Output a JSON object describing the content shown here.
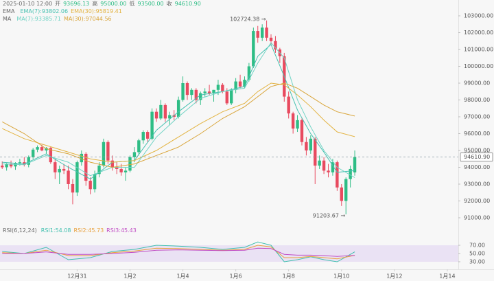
{
  "chart_data": [
    {
      "type": "candlestick",
      "header": {
        "time": "2025-01-10 12:00",
        "open_label": "开",
        "open": "93696.13",
        "high_label": "高",
        "high": "95000.00",
        "low_label": "低",
        "low": "93500.00",
        "close_label": "收",
        "close": "94610.90"
      },
      "colors": {
        "up": "#2ebd85",
        "down": "#e84a5f"
      },
      "categories": [
        null,
        null,
        null,
        null,
        null,
        null,
        null,
        null,
        null,
        null,
        null,
        null,
        null,
        null,
        null,
        null,
        null,
        null,
        null,
        null,
        null,
        null,
        null,
        null,
        null,
        null,
        null,
        null,
        null,
        null,
        null,
        null,
        null,
        null,
        null,
        null,
        null,
        null,
        null,
        null,
        null,
        null,
        null,
        null,
        null,
        null,
        null,
        null,
        null,
        null,
        null,
        null,
        null,
        null,
        null,
        null,
        null,
        null,
        null,
        null,
        null,
        null,
        null,
        null,
        null,
        null,
        null,
        null,
        null,
        null,
        null,
        null,
        null,
        null,
        null,
        null,
        null,
        null,
        null,
        null,
        null
      ],
      "open": [
        94100,
        94000,
        94200,
        94050,
        94250,
        94300,
        94150,
        94600,
        95050,
        95200,
        95000,
        95150,
        94300,
        93700,
        93900,
        93800,
        93000,
        92500,
        94300,
        94800,
        93200,
        92700,
        93600,
        94100,
        95500,
        94400,
        94000,
        93900,
        93700,
        93800,
        94600,
        94900,
        95600,
        96100,
        95700,
        97300,
        96900,
        97700,
        96900,
        97100,
        97000,
        98000,
        99000,
        98300,
        98600,
        98000,
        98400,
        98500,
        98400,
        98600,
        98900,
        98500,
        97800,
        98600,
        99100,
        98800,
        99200,
        100000,
        102100,
        101700,
        102300,
        101700,
        101500,
        101000,
        100600,
        98200,
        97200,
        96300,
        96800,
        95500,
        95000,
        95700,
        94100,
        94400,
        93800,
        93700,
        94300,
        92800,
        92000,
        93300,
        93696.13
      ],
      "high": [
        94350,
        94250,
        94400,
        94300,
        94500,
        94600,
        94700,
        95150,
        95300,
        95350,
        95200,
        95200,
        94500,
        94100,
        94200,
        94100,
        93300,
        94400,
        95000,
        94900,
        93400,
        93800,
        94300,
        95700,
        95600,
        94700,
        94300,
        94200,
        94000,
        94700,
        95200,
        95700,
        96200,
        96200,
        97500,
        97500,
        98000,
        97800,
        97300,
        97400,
        98200,
        99400,
        99100,
        98700,
        98700,
        98500,
        98700,
        98900,
        98600,
        99200,
        99000,
        98700,
        98700,
        99300,
        99500,
        99400,
        100200,
        102300,
        102400,
        102500,
        102724.38,
        101900,
        101800,
        101100,
        100800,
        98500,
        97300,
        97100,
        96900,
        95800,
        95900,
        95800,
        94700,
        94600,
        94200,
        94500,
        94400,
        93000,
        93400,
        94100,
        95000
      ],
      "low": [
        93900,
        93800,
        93950,
        93850,
        94100,
        94050,
        94000,
        94500,
        94900,
        94950,
        94800,
        94200,
        93300,
        93000,
        93600,
        92700,
        91800,
        92300,
        94100,
        92900,
        92400,
        92500,
        93400,
        94000,
        94200,
        93800,
        93600,
        93500,
        93200,
        93700,
        94300,
        94700,
        95400,
        95500,
        95600,
        96700,
        96800,
        96700,
        96500,
        96800,
        96900,
        97900,
        98000,
        98000,
        97800,
        97700,
        98200,
        98300,
        97900,
        98300,
        98400,
        97700,
        97700,
        98400,
        98700,
        98700,
        99100,
        99900,
        101400,
        101500,
        101500,
        101300,
        100800,
        100200,
        97900,
        96900,
        96000,
        96100,
        95300,
        94700,
        94800,
        93000,
        93900,
        93600,
        93400,
        93500,
        92600,
        91700,
        91203.67,
        92800,
        93500
      ],
      "close": [
        94000,
        94200,
        94050,
        94250,
        94300,
        94150,
        94600,
        95050,
        95200,
        95000,
        95150,
        94300,
        93700,
        93900,
        93800,
        93000,
        92500,
        94300,
        94800,
        93200,
        92700,
        93600,
        94100,
        95500,
        94400,
        94000,
        93900,
        93700,
        93800,
        94600,
        94900,
        95600,
        96100,
        95700,
        97300,
        96900,
        97700,
        96900,
        97100,
        97000,
        98000,
        99000,
        98300,
        98600,
        98000,
        98400,
        98500,
        98400,
        98600,
        98900,
        98500,
        97800,
        98600,
        99100,
        98800,
        99200,
        100000,
        102100,
        101700,
        102300,
        101700,
        101500,
        101000,
        100600,
        98200,
        97200,
        96300,
        96800,
        95500,
        95000,
        95700,
        94100,
        94400,
        93800,
        93700,
        94300,
        92800,
        92000,
        93300,
        93900,
        94610.9
      ],
      "indicators": [
        {
          "label": "EMA",
          "series": [
            {
              "name": "EMA(7):93802.06",
              "color": "#45c1b0",
              "x": [
                0,
                5,
                10,
                15,
                20,
                25,
                30,
                35,
                40,
                45,
                50,
                55,
                58,
                61,
                64,
                67,
                70,
                73,
                76,
                80
              ],
              "values": [
                94300,
                94200,
                94800,
                94000,
                93300,
                94300,
                94400,
                96200,
                97300,
                98300,
                98500,
                98800,
                100600,
                101300,
                99400,
                97400,
                96000,
                94900,
                93700,
                93802.06
              ]
            },
            {
              "name": "EMA(30):95819.41",
              "color": "#e3b341",
              "x": [
                0,
                5,
                10,
                15,
                20,
                25,
                30,
                35,
                40,
                45,
                50,
                55,
                58,
                61,
                64,
                67,
                70,
                73,
                76,
                80
              ],
              "values": [
                96300,
                95700,
                95300,
                94900,
                94500,
                94300,
                94400,
                95000,
                95800,
                96600,
                97300,
                97800,
                98500,
                99000,
                98900,
                98300,
                97600,
                96800,
                96100,
                95819.41
              ]
            }
          ]
        },
        {
          "label": "MA",
          "series": [
            {
              "name": "MA(7):93385.71",
              "color": "#6fd3c4",
              "x": [
                0,
                5,
                10,
                15,
                20,
                25,
                30,
                35,
                40,
                45,
                50,
                55,
                58,
                61,
                64,
                67,
                70,
                73,
                76,
                80
              ],
              "values": [
                94200,
                94150,
                94700,
                94300,
                93500,
                94000,
                94000,
                95800,
                97000,
                98100,
                98500,
                98700,
                100200,
                101400,
                100500,
                98000,
                96400,
                95000,
                94000,
                93385.71
              ]
            },
            {
              "name": "MA(30):97044.56",
              "color": "#d9a53a",
              "x": [
                0,
                5,
                10,
                15,
                20,
                25,
                30,
                35,
                40,
                45,
                50,
                55,
                58,
                61,
                64,
                67,
                70,
                73,
                76,
                80
              ],
              "values": [
                96700,
                96000,
                95100,
                94800,
                94300,
                94000,
                94200,
                94700,
                95200,
                96000,
                96900,
                97600,
                98200,
                98800,
                99000,
                98700,
                98200,
                97700,
                97300,
                97044.56
              ]
            }
          ]
        }
      ],
      "current_price": {
        "value": 94610.9,
        "label": "94610.90"
      },
      "max_label": "102724.38 →",
      "min_label": "91203.67 →",
      "xlim": [
        -0.5,
        103.5
      ],
      "xticks": [
        {
          "value": 17,
          "label": "12月31"
        },
        {
          "value": 29,
          "label": "1月2"
        },
        {
          "value": 41,
          "label": "1月4"
        },
        {
          "value": 53,
          "label": "1月6"
        },
        {
          "value": 65,
          "label": "1月8"
        },
        {
          "value": 77,
          "label": "1月10"
        },
        {
          "value": 89,
          "label": "1月12"
        },
        {
          "value": 101,
          "label": "1月14"
        }
      ],
      "ylim": [
        90060,
        103940
      ],
      "yticks": [
        {
          "value": 91000,
          "label": "91000.00"
        },
        {
          "value": 92000,
          "label": "92000.00"
        },
        {
          "value": 93000,
          "label": "93000.00"
        },
        {
          "value": 94000,
          "label": "94000.00"
        },
        {
          "value": 95000,
          "label": "95000.00"
        },
        {
          "value": 96000,
          "label": "96000.00"
        },
        {
          "value": 97000,
          "label": "97000.00"
        },
        {
          "value": 98000,
          "label": "98000.00"
        },
        {
          "value": 99000,
          "label": "99000.00"
        },
        {
          "value": 100000,
          "label": "100000.00"
        },
        {
          "value": 101000,
          "label": "101000.00"
        },
        {
          "value": 102000,
          "label": "102000.00"
        },
        {
          "value": 103000,
          "label": "103000.00"
        }
      ]
    },
    {
      "type": "line",
      "title": "RSI(6,12,24)",
      "series": [
        {
          "name": "RSI1:54.08",
          "color": "#3fbfae",
          "x": [
            0,
            5,
            10,
            15,
            20,
            25,
            30,
            35,
            40,
            45,
            50,
            55,
            58,
            61,
            64,
            67,
            70,
            73,
            76,
            80
          ],
          "values": [
            55,
            50,
            65,
            35,
            40,
            55,
            60,
            70,
            68,
            65,
            60,
            65,
            78,
            70,
            30,
            35,
            42,
            35,
            30,
            54.08
          ]
        },
        {
          "name": "RSI2:45.73",
          "color": "#e8a03c",
          "x": [
            0,
            5,
            10,
            15,
            20,
            25,
            30,
            35,
            40,
            45,
            50,
            55,
            58,
            61,
            64,
            67,
            70,
            73,
            76,
            80
          ],
          "values": [
            52,
            50,
            58,
            45,
            45,
            52,
            56,
            63,
            62,
            60,
            58,
            60,
            70,
            66,
            40,
            40,
            43,
            40,
            37,
            45.73
          ]
        },
        {
          "name": "RSI3:45.43",
          "color": "#c04cc4",
          "x": [
            0,
            5,
            10,
            15,
            20,
            25,
            30,
            35,
            40,
            45,
            50,
            55,
            58,
            61,
            64,
            67,
            70,
            73,
            76,
            80
          ],
          "values": [
            50,
            50,
            54,
            48,
            48,
            50,
            53,
            58,
            59,
            58,
            57,
            58,
            63,
            62,
            48,
            46,
            46,
            45,
            43,
            45.43
          ]
        }
      ],
      "band_color": "#e6dcf3",
      "ylim": [
        20,
        80
      ],
      "yticks": [
        {
          "value": 30,
          "label": "30.00"
        },
        {
          "value": 50,
          "label": "50.00"
        },
        {
          "value": 70,
          "label": "70.00"
        }
      ]
    }
  ]
}
